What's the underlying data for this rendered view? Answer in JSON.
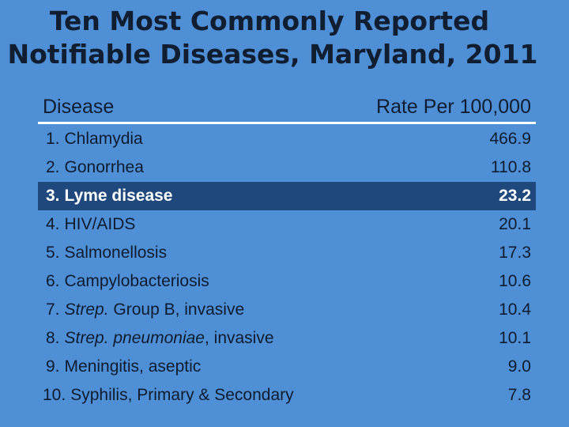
{
  "title": {
    "line1": "Ten Most Commonly Reported",
    "line2": "Notifiable Diseases, Maryland, 2011"
  },
  "table": {
    "headers": {
      "disease": "Disease",
      "rate": "Rate Per 100,000"
    },
    "rows": [
      {
        "rank": "1.",
        "name": "Chlamydia",
        "value": "466.9"
      },
      {
        "rank": "2.",
        "name": "Gonorrhea",
        "value": "110.8"
      },
      {
        "rank": "3.",
        "name": "Lyme disease",
        "value": "23.2",
        "highlighted": true
      },
      {
        "rank": "4.",
        "name": "HIV/AIDS",
        "value": "20.1"
      },
      {
        "rank": "5.",
        "name": "Salmonellosis",
        "value": "17.3"
      },
      {
        "rank": "6.",
        "name": "Campylobacteriosis",
        "value": "10.6"
      },
      {
        "rank": "7.",
        "name_italic": "Strep.",
        "name": " Group B, invasive",
        "value": "10.4"
      },
      {
        "rank": "8.",
        "name_italic": "Strep. pneumoniae",
        "name": ", invasive",
        "value": "10.1"
      },
      {
        "rank": "9.",
        "name": "Meningitis, aseptic",
        "value": "9.0"
      },
      {
        "rank": "10.",
        "name": "Syphilis, Primary  & Secondary",
        "value": "7.8"
      }
    ]
  },
  "colors": {
    "background": "#4e8fd6",
    "highlight_row": "#1f497d",
    "header_rule": "#ffffff"
  }
}
